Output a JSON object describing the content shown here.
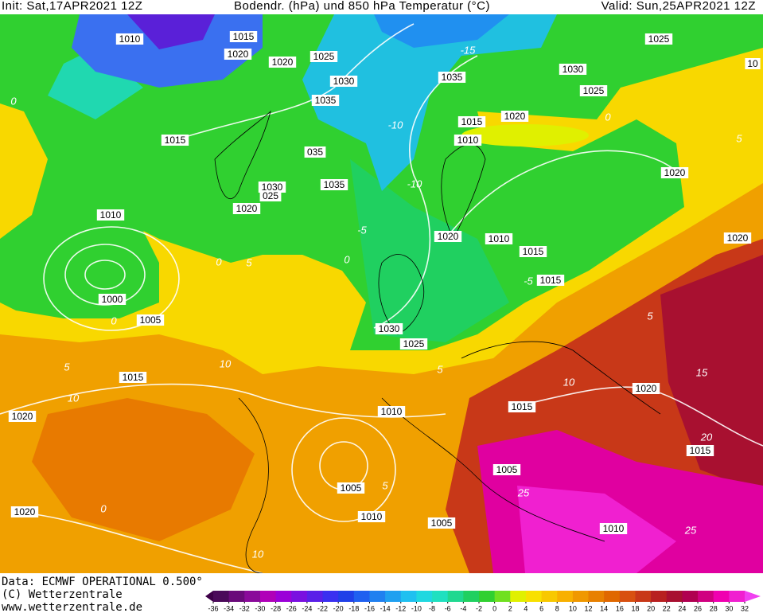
{
  "header": {
    "init": "Init: Sat,17APR2021 12Z",
    "title": "Bodendr. (hPa) und 850 hPa Temperatur (°C)",
    "valid": "Valid: Sun,25APR2021 12Z"
  },
  "map": {
    "isobar_labels": [
      "1010",
      "1015",
      "1020",
      "1020",
      "1025",
      "1025",
      "1030",
      "1035",
      "1035",
      "1030",
      "1025",
      "1015",
      "1020",
      "1010",
      "1015",
      "035",
      "1030",
      "025",
      "1020",
      "1035",
      "1020",
      "1010",
      "1020",
      "1010",
      "1015",
      "1020",
      "1015",
      "1000",
      "1005",
      "1030",
      "1025",
      "1015",
      "1020",
      "1015",
      "1010",
      "1020",
      "1015",
      "1005",
      "1005",
      "1020",
      "1010",
      "1005",
      "1010",
      "10"
    ],
    "temperature_labels": [
      "-15",
      "-10",
      "-10",
      "-5",
      "0",
      "5",
      "0",
      "5",
      "10",
      "10",
      "5",
      "10",
      "15",
      "20",
      "25",
      "25",
      "10",
      "0",
      "5",
      "0",
      "-5",
      "5",
      "0",
      "5",
      "0"
    ]
  },
  "colorbar": {
    "ticks": [
      -36,
      -34,
      -32,
      -30,
      -28,
      -26,
      -24,
      -22,
      -20,
      -18,
      -16,
      -14,
      -12,
      -10,
      -8,
      -6,
      -4,
      -2,
      0,
      2,
      4,
      6,
      8,
      10,
      12,
      14,
      16,
      18,
      20,
      22,
      24,
      26,
      28,
      30,
      32
    ],
    "colors": [
      "#3d0048",
      "#4b0a5a",
      "#6a0a7a",
      "#8a0a9a",
      "#b000b8",
      "#9b00d8",
      "#7a10e0",
      "#5a20e8",
      "#3a30f0",
      "#2040e8",
      "#2060f0",
      "#2080f0",
      "#20a0f0",
      "#20c0f0",
      "#20d8e0",
      "#20e0c0",
      "#20d890",
      "#20d060",
      "#30d030",
      "#70e020",
      "#e0f000",
      "#f8e000",
      "#f8c800",
      "#f8b000",
      "#f09800",
      "#e88000",
      "#e06800",
      "#d85010",
      "#c83818",
      "#b82020",
      "#a81030",
      "#b00050",
      "#d00080",
      "#f000b0",
      "#f020d0",
      "#f040f0"
    ]
  },
  "footer": {
    "lines": [
      "Data: ECMWF OPERATIONAL 0.500°",
      "(C) Wetterzentrale",
      "www.wetterzentrale.de"
    ]
  }
}
